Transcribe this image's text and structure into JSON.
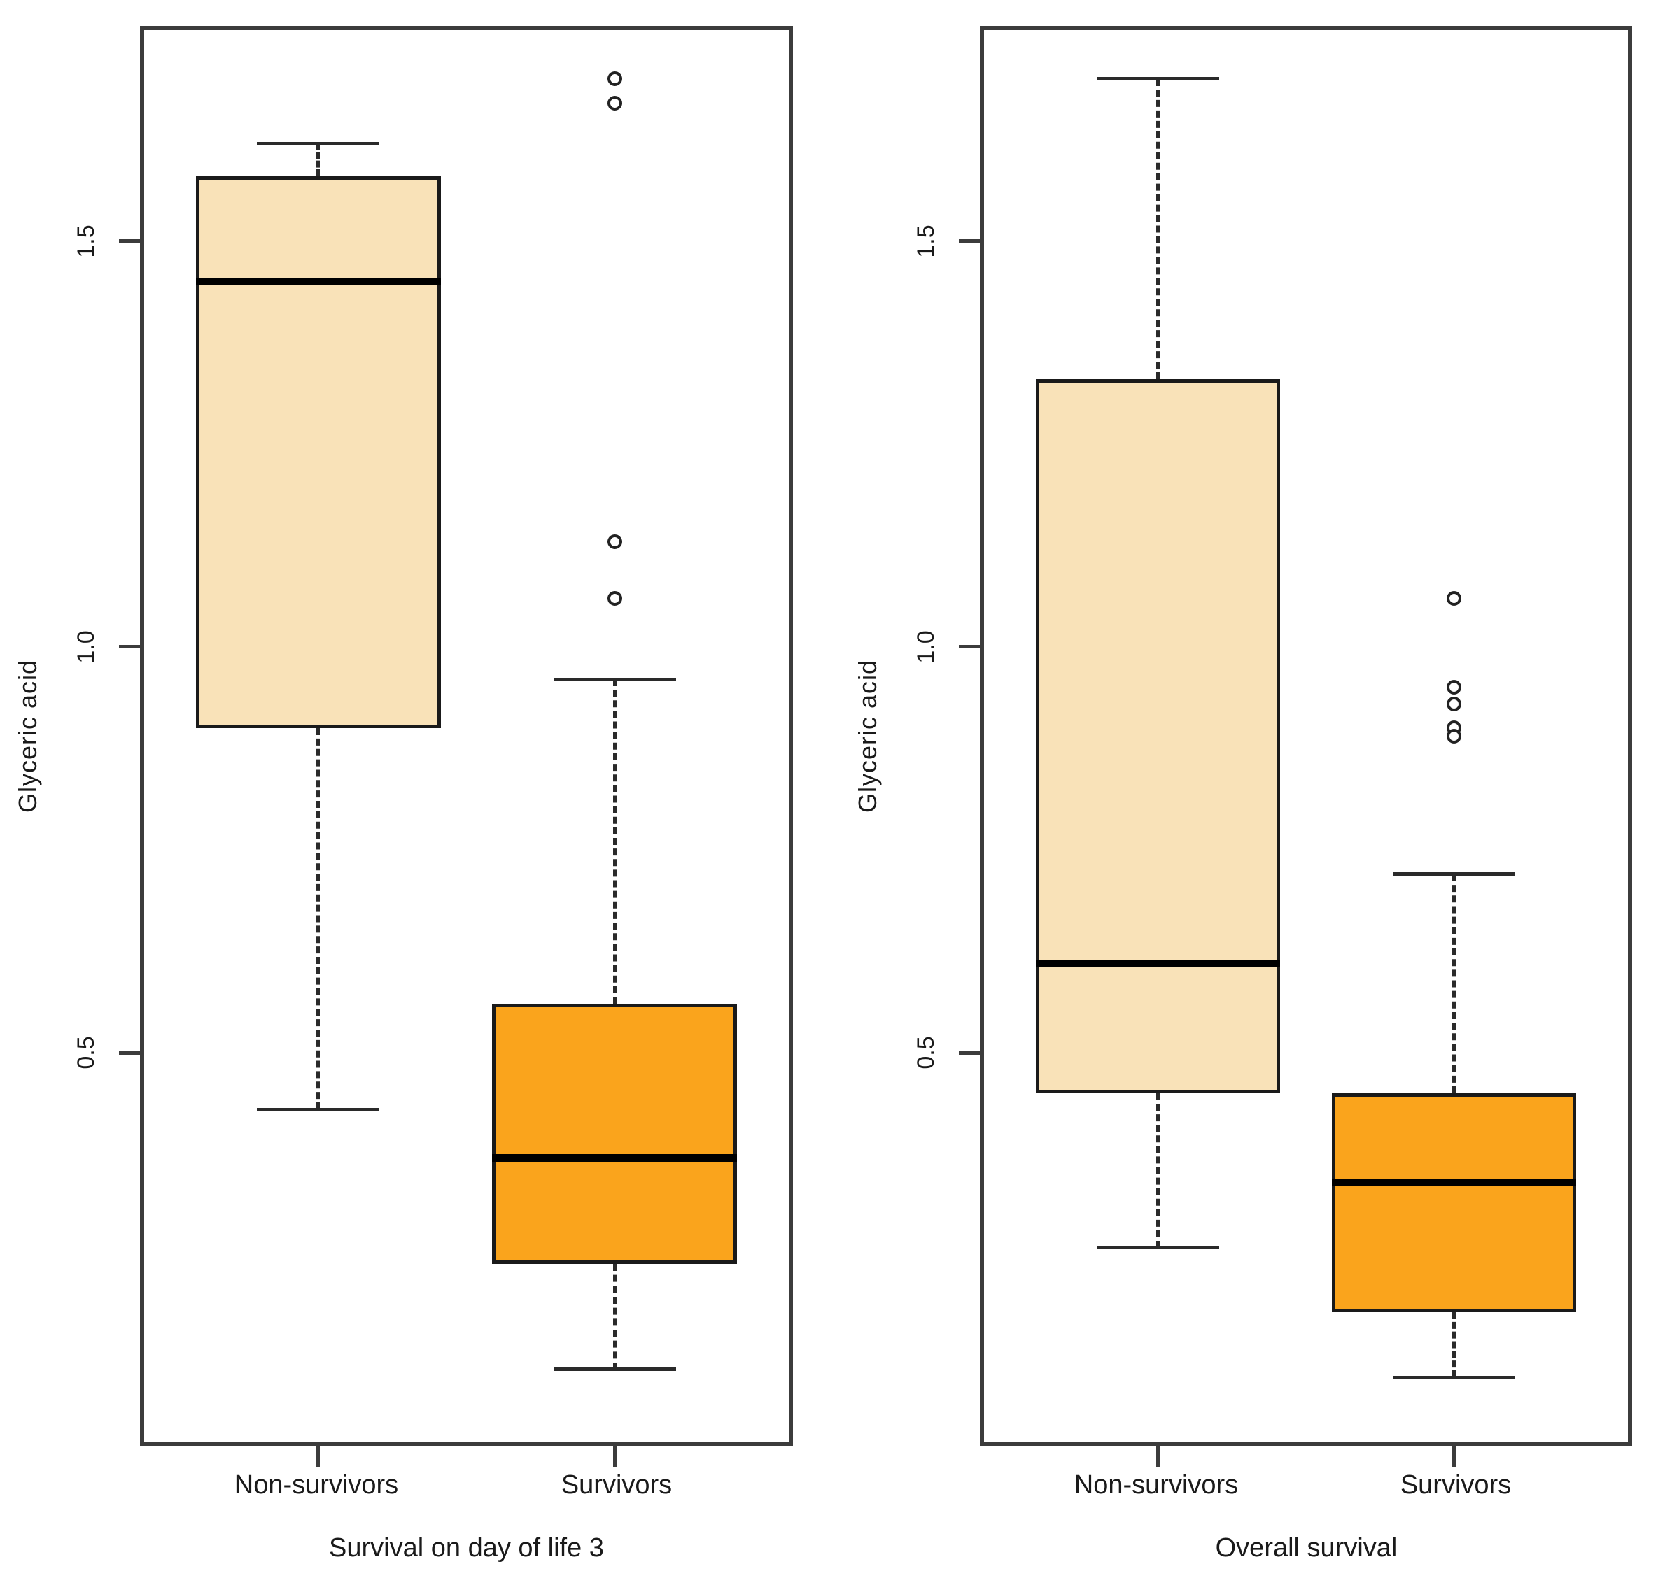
{
  "figure": {
    "background": "#ffffff",
    "axis_color": "#3c3c3c",
    "text_color": "#1a1a1a",
    "non_survivors_fill": "#F9E2B8",
    "survivors_fill": "#FAA41C"
  },
  "chart_data": [
    {
      "type": "boxplot",
      "title": "",
      "xlabel": "Survival on day of life 3",
      "ylabel": "Glyceric acid",
      "ylim": [
        0.02,
        1.76
      ],
      "yticks": [
        0.5,
        1.0,
        1.5
      ],
      "ytick_labels": [
        "0.5",
        "1.0",
        "1.5"
      ],
      "grid": false,
      "legend": false,
      "categories": [
        "Non-survivors",
        "Survivors"
      ],
      "groups": [
        {
          "label": "Non-survivors",
          "whisker_low": 0.43,
          "q1": 0.9,
          "median": 1.45,
          "q3": 1.58,
          "whisker_high": 1.62,
          "outliers": [],
          "fill": "#F9E2B8"
        },
        {
          "label": "Survivors",
          "whisker_low": 0.11,
          "q1": 0.24,
          "median": 0.37,
          "q3": 0.56,
          "whisker_high": 0.96,
          "outliers": [
            1.7,
            1.67,
            1.13,
            1.06
          ],
          "fill": "#FAA41C"
        }
      ]
    },
    {
      "type": "boxplot",
      "title": "",
      "xlabel": "Overall survival",
      "ylabel": "Glyceric acid",
      "ylim": [
        0.02,
        1.76
      ],
      "yticks": [
        0.5,
        1.0,
        1.5
      ],
      "ytick_labels": [
        "0.5",
        "1.0",
        "1.5"
      ],
      "grid": false,
      "legend": false,
      "categories": [
        "Non-survivors",
        "Survivors"
      ],
      "groups": [
        {
          "label": "Non-survivors",
          "whisker_low": 0.26,
          "q1": 0.45,
          "median": 0.61,
          "q3": 1.33,
          "whisker_high": 1.7,
          "outliers": [],
          "fill": "#F9E2B8"
        },
        {
          "label": "Survivors",
          "whisker_low": 0.1,
          "q1": 0.18,
          "median": 0.34,
          "q3": 0.45,
          "whisker_high": 0.72,
          "outliers": [
            1.06,
            0.95,
            0.93,
            0.9,
            0.89
          ],
          "fill": "#FAA41C"
        }
      ]
    }
  ]
}
